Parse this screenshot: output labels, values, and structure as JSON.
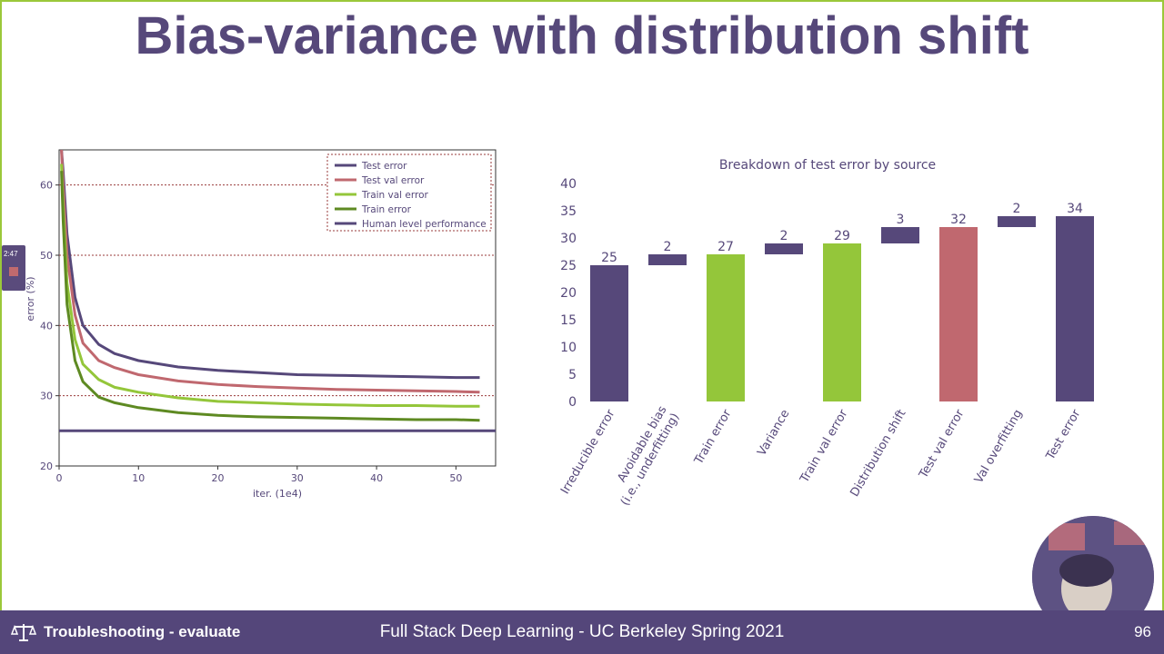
{
  "slide": {
    "title": "Bias-variance with distribution shift",
    "footer_left": "Troubleshooting - evaluate",
    "footer_center": "Full Stack Deep Learning - UC Berkeley Spring 2021",
    "page_number": "96",
    "side_widget_text": "2:47"
  },
  "colors": {
    "purple": "#56487a",
    "red": "#c0686f",
    "lightgreen": "#94c63a",
    "darkgreen": "#5e8a22",
    "grid": "#9a3b3b",
    "footer_bg": "#54467a",
    "frame": "#9bc83a"
  },
  "chart_data": [
    {
      "type": "line",
      "xlabel": "iter. (1e4)",
      "ylabel": "error (%)",
      "xlim": [
        0,
        55
      ],
      "ylim": [
        20,
        65
      ],
      "xticks": [
        0,
        10,
        20,
        30,
        40,
        50
      ],
      "yticks": [
        20,
        30,
        40,
        50,
        60
      ],
      "grid": "horizontal dashed",
      "legend_position": "top-right",
      "series": [
        {
          "name": "Test error",
          "color": "#56487a",
          "x": [
            0.3,
            0.5,
            1,
            2,
            3,
            5,
            7,
            10,
            15,
            20,
            25,
            30,
            35,
            40,
            45,
            50,
            53
          ],
          "y": [
            65,
            62,
            53,
            44,
            40,
            37.3,
            36,
            35,
            34.1,
            33.6,
            33.3,
            33.0,
            32.9,
            32.8,
            32.7,
            32.6,
            32.6
          ]
        },
        {
          "name": "Test val error",
          "color": "#c0686f",
          "x": [
            0.3,
            0.5,
            1,
            2,
            3,
            5,
            7,
            10,
            15,
            20,
            25,
            30,
            35,
            40,
            45,
            50,
            53
          ],
          "y": [
            65,
            60,
            50,
            41.5,
            37.5,
            35,
            34,
            33,
            32.1,
            31.6,
            31.3,
            31.1,
            30.9,
            30.8,
            30.7,
            30.6,
            30.5
          ]
        },
        {
          "name": "Train val error",
          "color": "#94c63a",
          "x": [
            0.3,
            0.5,
            1,
            2,
            3,
            5,
            7,
            10,
            15,
            20,
            25,
            30,
            35,
            40,
            45,
            50,
            53
          ],
          "y": [
            63,
            57,
            46,
            38,
            34.5,
            32.3,
            31.2,
            30.5,
            29.7,
            29.2,
            29,
            28.8,
            28.7,
            28.6,
            28.6,
            28.5,
            28.5
          ]
        },
        {
          "name": "Train error",
          "color": "#5e8a22",
          "x": [
            0.3,
            0.5,
            1,
            2,
            3,
            5,
            7,
            10,
            15,
            20,
            25,
            30,
            35,
            40,
            45,
            50,
            53
          ],
          "y": [
            62,
            55,
            43,
            35,
            32,
            29.8,
            29,
            28.3,
            27.6,
            27.2,
            27,
            26.9,
            26.8,
            26.7,
            26.6,
            26.6,
            26.5
          ]
        },
        {
          "name": "Human level performance",
          "color": "#56487a",
          "x": [
            0,
            55
          ],
          "y": [
            25,
            25
          ]
        }
      ]
    },
    {
      "type": "bar",
      "subtype": "waterfall",
      "title": "Breakdown of test error by source",
      "ylim": [
        0,
        40
      ],
      "yticks": [
        0,
        5,
        10,
        15,
        20,
        25,
        30,
        35,
        40
      ],
      "categories": [
        "Irreducible error",
        "Avoidable bias\n(i.e., underfitting)",
        "Train error",
        "Variance",
        "Train val error",
        "Distribution shift",
        "Test val error",
        "Val overfitting",
        "Test error"
      ],
      "bases": [
        0,
        25,
        0,
        27,
        0,
        29,
        0,
        32,
        0
      ],
      "values": [
        25,
        2,
        27,
        2,
        29,
        3,
        32,
        2,
        34
      ],
      "labels": [
        "25",
        "2",
        "27",
        "2",
        "29",
        "3",
        "32",
        "2",
        "34"
      ],
      "bar_colors": [
        "#56487a",
        "#56487a",
        "#94c63a",
        "#56487a",
        "#94c63a",
        "#56487a",
        "#c0686f",
        "#56487a",
        "#56487a"
      ]
    }
  ]
}
